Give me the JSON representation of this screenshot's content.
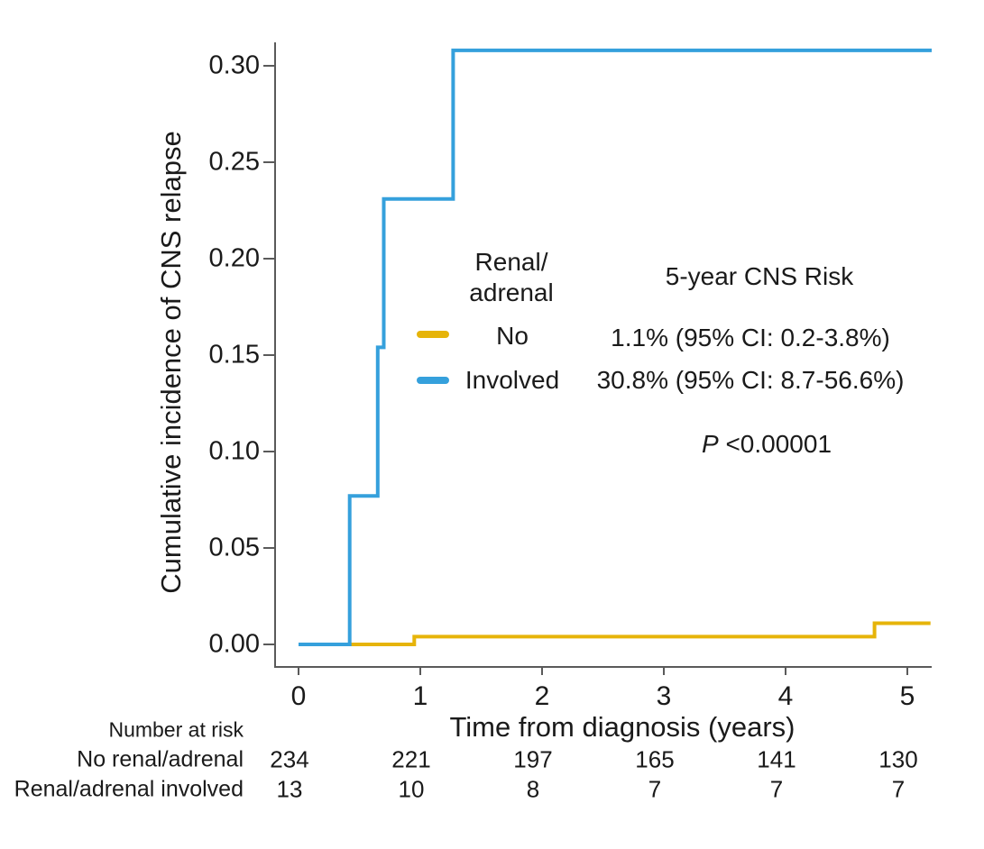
{
  "colors": {
    "no_color": "#E6B40A",
    "involved_color": "#35A0DC",
    "axis_color": "#5a5a5a",
    "text_color": "#1a1a1a"
  },
  "chart_data": {
    "type": "line",
    "subtype": "step-cumulative-incidence",
    "title": "",
    "xlabel": "Time from diagnosis (years)",
    "ylabel": "Cumulative incidence of CNS relapse",
    "xlim": [
      0,
      5.2
    ],
    "ylim": [
      0,
      0.32
    ],
    "x_ticks": [
      0,
      1,
      2,
      3,
      4,
      5
    ],
    "y_ticks": [
      "0.00",
      "0.05",
      "0.10",
      "0.15",
      "0.20",
      "0.25",
      "0.30"
    ],
    "grid": false,
    "legend_position": "inside-center",
    "legend_title_lines": [
      "Renal/",
      "adrenal"
    ],
    "series": [
      {
        "name": "No",
        "color": "#E6B40A",
        "points": [
          [
            0,
            0
          ],
          [
            0.95,
            0
          ],
          [
            0.95,
            0.004
          ],
          [
            4.73,
            0.004
          ],
          [
            4.73,
            0.011
          ],
          [
            5.19,
            0.011
          ]
        ]
      },
      {
        "name": "Involved",
        "color": "#35A0DC",
        "points": [
          [
            0,
            0
          ],
          [
            0.42,
            0
          ],
          [
            0.42,
            0.077
          ],
          [
            0.65,
            0.077
          ],
          [
            0.65,
            0.154
          ],
          [
            0.7,
            0.154
          ],
          [
            0.7,
            0.231
          ],
          [
            1.27,
            0.231
          ],
          [
            1.27,
            0.308
          ],
          [
            5.2,
            0.308
          ]
        ]
      }
    ],
    "annotations": {
      "header": "5-year CNS Risk",
      "no_risk": "1.1% (95% CI: 0.2-3.8%)",
      "involved_risk": "30.8% (95% CI: 8.7-56.6%)",
      "p_italic": "P",
      "p_rest": " <0.00001"
    }
  },
  "risk_table": {
    "title": "Number at risk",
    "rows": [
      {
        "label": "No renal/adrenal",
        "values": [
          "234",
          "221",
          "197",
          "165",
          "141",
          "130"
        ]
      },
      {
        "label": "Renal/adrenal involved",
        "values": [
          "13",
          "10",
          "8",
          "7",
          "7",
          "7"
        ]
      }
    ]
  }
}
